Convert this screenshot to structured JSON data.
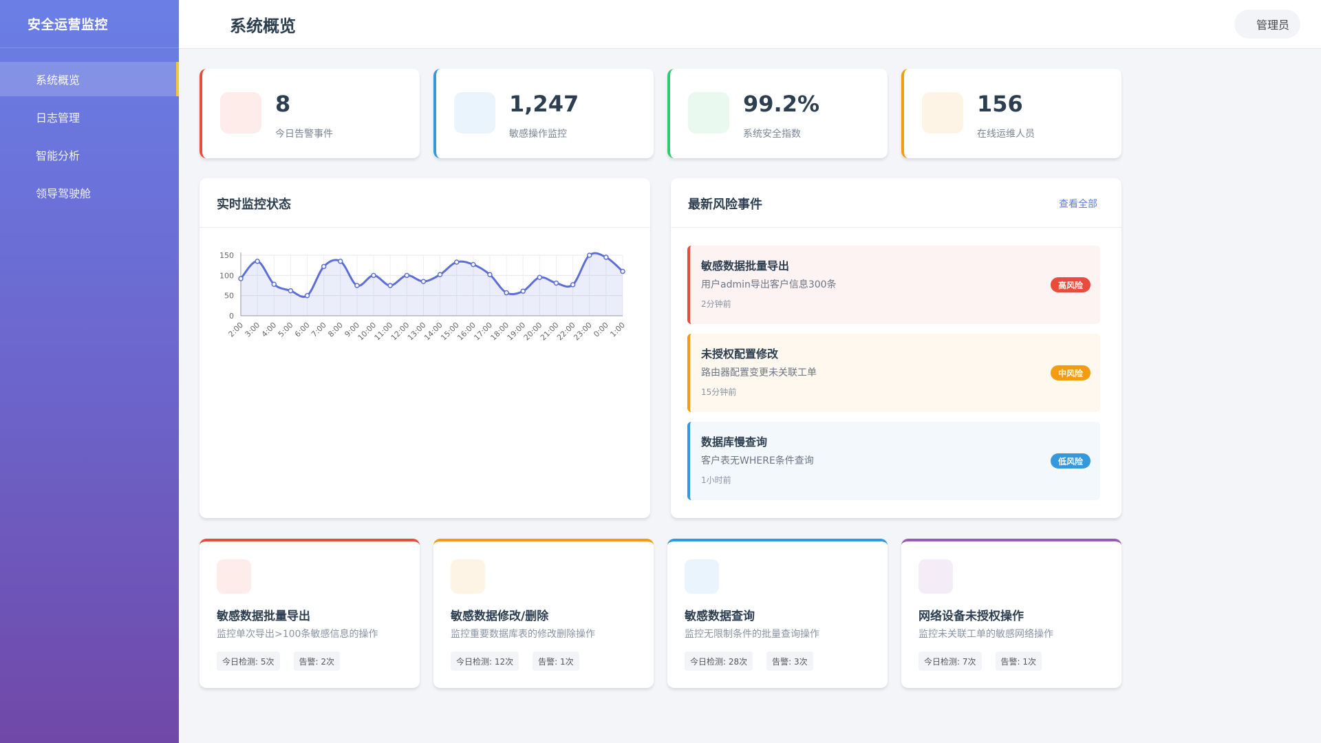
{
  "app": {
    "brand": "安全运营监控"
  },
  "sidebar": {
    "items": [
      {
        "label": "系统概览",
        "active": true
      },
      {
        "label": "日志管理",
        "active": false
      },
      {
        "label": "智能分析",
        "active": false
      },
      {
        "label": "领导驾驶舱",
        "active": false
      }
    ]
  },
  "header": {
    "title": "系统概览",
    "user": "管理员"
  },
  "stats": [
    {
      "value": "8",
      "label": "今日告警事件",
      "color": "#e74c3c",
      "icon_bg": "#fdecea",
      "icon": "alert-icon"
    },
    {
      "value": "1,247",
      "label": "敏感操作监控",
      "color": "#3498db",
      "icon_bg": "#eaf4fc",
      "icon": "eye-icon"
    },
    {
      "value": "99.2%",
      "label": "系统安全指数",
      "color": "#2ecc71",
      "icon_bg": "#e9f9ef",
      "icon": "shield-icon"
    },
    {
      "value": "156",
      "label": "在线运维人员",
      "color": "#f39c12",
      "icon_bg": "#fef4e6",
      "icon": "users-icon"
    }
  ],
  "monitor_panel": {
    "title": "实时监控状态"
  },
  "chart_data": {
    "type": "line",
    "x": [
      "2:00",
      "3:00",
      "4:00",
      "5:00",
      "6:00",
      "7:00",
      "8:00",
      "9:00",
      "10:00",
      "11:00",
      "12:00",
      "13:00",
      "14:00",
      "15:00",
      "16:00",
      "17:00",
      "18:00",
      "19:00",
      "20:00",
      "21:00",
      "22:00",
      "23:00",
      "0:00",
      "1:00"
    ],
    "series": [
      {
        "values": [
          92,
          135,
          78,
          62,
          50,
          122,
          135,
          75,
          100,
          75,
          100,
          85,
          102,
          133,
          127,
          102,
          57,
          61,
          95,
          81,
          77,
          150,
          145,
          110
        ]
      }
    ],
    "yticks": [
      0,
      50,
      100,
      150
    ],
    "ylim": [
      0,
      150
    ],
    "grid": true,
    "color": "#5b6fd6",
    "legend": "none"
  },
  "risk_panel": {
    "title": "最新风险事件",
    "view_all": "查看全部",
    "events": [
      {
        "title": "敏感数据批量导出",
        "desc": "用户admin导出客户信息300条",
        "time": "2分钟前",
        "badge": "高风险",
        "color": "#e74c3c",
        "bg": "#fdf3f2"
      },
      {
        "title": "未授权配置修改",
        "desc": "路由器配置变更未关联工单",
        "time": "15分钟前",
        "badge": "中风险",
        "color": "#f39c12",
        "bg": "#fef8ef"
      },
      {
        "title": "数据库慢查询",
        "desc": "客户表无WHERE条件查询",
        "time": "1小时前",
        "badge": "低风险",
        "color": "#3498db",
        "bg": "#f3f8fd"
      }
    ]
  },
  "monitors": [
    {
      "title": "敏感数据批量导出",
      "desc": "监控单次导出>100条敏感信息的操作",
      "detect": "今日检测: 5次",
      "alert": "告警: 2次",
      "color": "#e74c3c",
      "icon_bg": "#fdecea",
      "icon": "export-icon"
    },
    {
      "title": "敏感数据修改/删除",
      "desc": "监控重要数据库表的修改删除操作",
      "detect": "今日检测: 12次",
      "alert": "告警: 1次",
      "color": "#f39c12",
      "icon_bg": "#fef4e6",
      "icon": "edit-icon"
    },
    {
      "title": "敏感数据查询",
      "desc": "监控无限制条件的批量查询操作",
      "detect": "今日检测: 28次",
      "alert": "告警: 3次",
      "color": "#3498db",
      "icon_bg": "#eaf4fc",
      "icon": "search-icon"
    },
    {
      "title": "网络设备未授权操作",
      "desc": "监控未关联工单的敏感网络操作",
      "detect": "今日检测: 7次",
      "alert": "告警: 1次",
      "color": "#9b59b6",
      "icon_bg": "#f4ecf7",
      "icon": "network-icon"
    }
  ]
}
